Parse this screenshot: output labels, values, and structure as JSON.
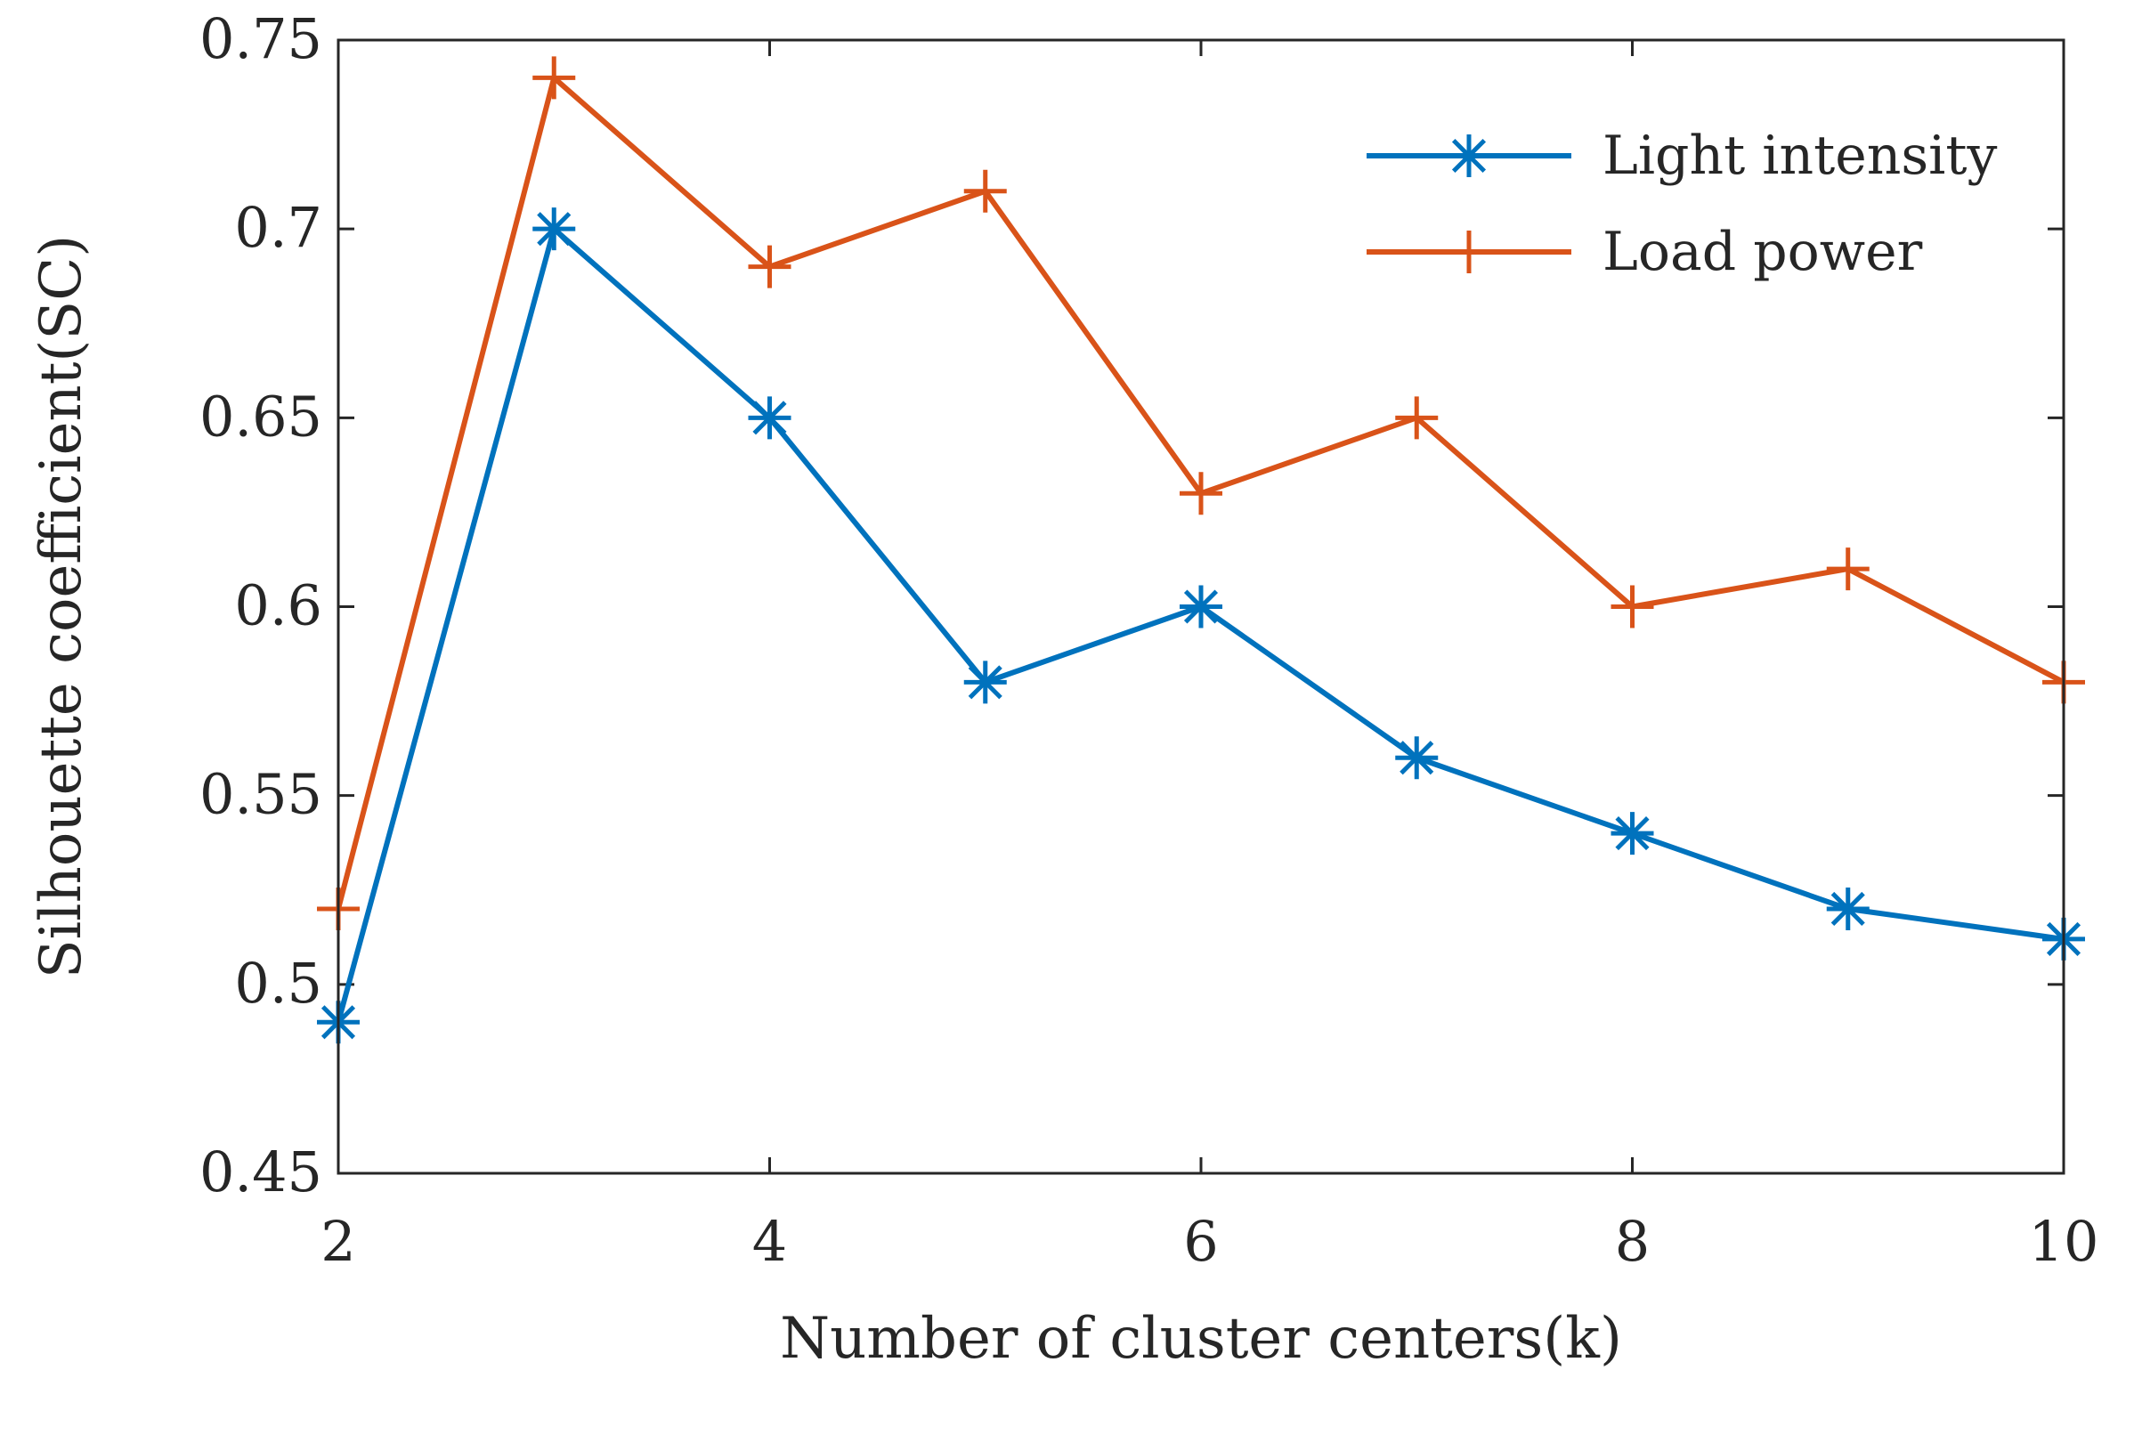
{
  "chart_data": {
    "type": "line",
    "title": "",
    "xlabel": "Number of cluster centers(k)",
    "ylabel": "Silhouette coefficient(SC)",
    "xlim": [
      2,
      10
    ],
    "ylim": [
      0.45,
      0.75
    ],
    "xticks": [
      2,
      4,
      6,
      8,
      10
    ],
    "xtick_labels": [
      "2",
      "4",
      "6",
      "8",
      "10"
    ],
    "yticks": [
      0.45,
      0.5,
      0.55,
      0.6,
      0.65,
      0.7,
      0.75
    ],
    "ytick_labels": [
      "0.45",
      "0.5",
      "0.55",
      "0.6",
      "0.65",
      "0.7",
      "0.75"
    ],
    "grid": false,
    "legend_position": "top-right",
    "x": [
      2,
      3,
      4,
      5,
      6,
      7,
      8,
      9,
      10
    ],
    "series": [
      {
        "name": "Light intensity",
        "marker": "asterisk",
        "color": "#0072BD",
        "values": [
          0.49,
          0.7,
          0.65,
          0.58,
          0.6,
          0.56,
          0.54,
          0.52,
          0.512
        ]
      },
      {
        "name": "Load power",
        "marker": "plus",
        "color": "#D95319",
        "values": [
          0.52,
          0.74,
          0.69,
          0.71,
          0.63,
          0.65,
          0.6,
          0.61,
          0.58
        ]
      }
    ]
  }
}
